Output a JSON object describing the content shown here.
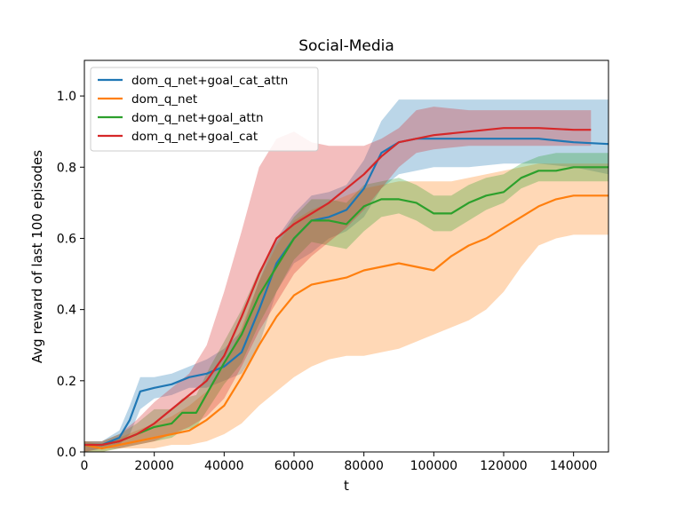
{
  "chart_data": {
    "type": "line",
    "title": "Social-Media",
    "xlabel": "t",
    "ylabel": "Avg reward of last 100 episodes",
    "xlim": [
      0,
      150000
    ],
    "ylim": [
      0,
      1.1
    ],
    "xticks": [
      0,
      20000,
      40000,
      60000,
      80000,
      100000,
      120000,
      140000
    ],
    "yticks": [
      0.0,
      0.2,
      0.4,
      0.6,
      0.8,
      1.0
    ],
    "xtick_labels": [
      "0",
      "20000",
      "40000",
      "60000",
      "80000",
      "100000",
      "120000",
      "140000"
    ],
    "ytick_labels": [
      "0.0",
      "0.2",
      "0.4",
      "0.6",
      "0.8",
      "1.0"
    ],
    "legend_position": "top-left",
    "series": [
      {
        "name": "dom_q_net+goal_cat_attn",
        "color": "#1f77b4",
        "x": [
          0,
          5000,
          10000,
          13000,
          16000,
          20000,
          25000,
          30000,
          35000,
          40000,
          45000,
          50000,
          55000,
          60000,
          65000,
          70000,
          75000,
          80000,
          85000,
          90000,
          95000,
          100000,
          110000,
          120000,
          130000,
          140000,
          150000
        ],
        "mean": [
          0.02,
          0.02,
          0.04,
          0.09,
          0.17,
          0.18,
          0.19,
          0.21,
          0.22,
          0.24,
          0.28,
          0.4,
          0.53,
          0.6,
          0.65,
          0.66,
          0.68,
          0.74,
          0.84,
          0.87,
          0.88,
          0.88,
          0.88,
          0.88,
          0.88,
          0.87,
          0.865
        ],
        "lower": [
          0.0,
          0.01,
          0.02,
          0.05,
          0.12,
          0.15,
          0.16,
          0.18,
          0.18,
          0.2,
          0.22,
          0.3,
          0.45,
          0.53,
          0.56,
          0.6,
          0.62,
          0.66,
          0.74,
          0.78,
          0.79,
          0.8,
          0.8,
          0.81,
          0.81,
          0.8,
          0.78
        ],
        "upper": [
          0.03,
          0.03,
          0.06,
          0.13,
          0.21,
          0.21,
          0.22,
          0.24,
          0.26,
          0.29,
          0.34,
          0.48,
          0.6,
          0.67,
          0.72,
          0.73,
          0.75,
          0.82,
          0.93,
          0.99,
          0.99,
          0.99,
          0.99,
          0.99,
          0.99,
          0.99,
          0.99
        ]
      },
      {
        "name": "dom_q_net",
        "color": "#ff7f0e",
        "x": [
          0,
          5000,
          10000,
          15000,
          20000,
          25000,
          30000,
          35000,
          40000,
          45000,
          50000,
          55000,
          60000,
          65000,
          70000,
          75000,
          80000,
          85000,
          90000,
          95000,
          100000,
          105000,
          110000,
          115000,
          120000,
          125000,
          130000,
          135000,
          140000,
          145000,
          150000
        ],
        "mean": [
          0.02,
          0.01,
          0.02,
          0.03,
          0.04,
          0.05,
          0.06,
          0.09,
          0.13,
          0.21,
          0.3,
          0.38,
          0.44,
          0.47,
          0.48,
          0.49,
          0.51,
          0.52,
          0.53,
          0.52,
          0.51,
          0.55,
          0.58,
          0.6,
          0.63,
          0.66,
          0.69,
          0.71,
          0.72,
          0.72,
          0.72
        ],
        "lower": [
          0.0,
          0.0,
          0.01,
          0.01,
          0.01,
          0.02,
          0.02,
          0.03,
          0.05,
          0.08,
          0.13,
          0.17,
          0.21,
          0.24,
          0.26,
          0.27,
          0.27,
          0.28,
          0.29,
          0.31,
          0.33,
          0.35,
          0.37,
          0.4,
          0.45,
          0.52,
          0.58,
          0.6,
          0.61,
          0.61,
          0.61
        ],
        "upper": [
          0.03,
          0.02,
          0.04,
          0.06,
          0.08,
          0.1,
          0.13,
          0.17,
          0.24,
          0.35,
          0.48,
          0.58,
          0.65,
          0.68,
          0.7,
          0.72,
          0.74,
          0.75,
          0.76,
          0.76,
          0.76,
          0.76,
          0.77,
          0.78,
          0.79,
          0.8,
          0.81,
          0.81,
          0.81,
          0.81,
          0.81
        ]
      },
      {
        "name": "dom_q_net+goal_attn",
        "color": "#2ca02c",
        "x": [
          0,
          5000,
          10000,
          15000,
          20000,
          25000,
          28000,
          32000,
          36000,
          40000,
          45000,
          50000,
          55000,
          60000,
          65000,
          70000,
          75000,
          80000,
          85000,
          90000,
          95000,
          100000,
          105000,
          110000,
          115000,
          120000,
          125000,
          130000,
          135000,
          140000,
          145000,
          150000
        ],
        "mean": [
          0.02,
          0.02,
          0.03,
          0.05,
          0.07,
          0.08,
          0.11,
          0.11,
          0.18,
          0.25,
          0.33,
          0.44,
          0.52,
          0.6,
          0.65,
          0.65,
          0.64,
          0.69,
          0.71,
          0.71,
          0.7,
          0.67,
          0.67,
          0.7,
          0.72,
          0.73,
          0.77,
          0.79,
          0.79,
          0.8,
          0.8,
          0.8
        ],
        "lower": [
          0.0,
          0.0,
          0.01,
          0.02,
          0.03,
          0.04,
          0.06,
          0.07,
          0.13,
          0.19,
          0.25,
          0.36,
          0.45,
          0.54,
          0.59,
          0.58,
          0.57,
          0.62,
          0.66,
          0.67,
          0.65,
          0.62,
          0.62,
          0.65,
          0.68,
          0.7,
          0.74,
          0.76,
          0.76,
          0.76,
          0.76,
          0.76
        ],
        "upper": [
          0.03,
          0.03,
          0.05,
          0.08,
          0.12,
          0.12,
          0.15,
          0.16,
          0.24,
          0.31,
          0.4,
          0.51,
          0.59,
          0.66,
          0.71,
          0.71,
          0.7,
          0.75,
          0.76,
          0.77,
          0.75,
          0.72,
          0.72,
          0.75,
          0.77,
          0.78,
          0.81,
          0.83,
          0.84,
          0.84,
          0.84,
          0.84
        ]
      },
      {
        "name": "dom_q_net+goal_cat",
        "color": "#d62728",
        "x": [
          0,
          5000,
          10000,
          15000,
          20000,
          25000,
          30000,
          35000,
          40000,
          45000,
          50000,
          55000,
          60000,
          65000,
          70000,
          75000,
          80000,
          85000,
          90000,
          95000,
          100000,
          110000,
          120000,
          130000,
          140000,
          145000
        ],
        "mean": [
          0.02,
          0.02,
          0.03,
          0.05,
          0.08,
          0.12,
          0.16,
          0.2,
          0.27,
          0.38,
          0.5,
          0.6,
          0.64,
          0.67,
          0.7,
          0.74,
          0.78,
          0.83,
          0.87,
          0.88,
          0.89,
          0.9,
          0.91,
          0.91,
          0.905,
          0.905
        ],
        "lower": [
          0.0,
          0.01,
          0.01,
          0.02,
          0.03,
          0.05,
          0.07,
          0.1,
          0.15,
          0.24,
          0.34,
          0.42,
          0.5,
          0.55,
          0.59,
          0.63,
          0.68,
          0.74,
          0.8,
          0.84,
          0.85,
          0.86,
          0.86,
          0.86,
          0.86,
          0.86
        ],
        "upper": [
          0.03,
          0.03,
          0.05,
          0.09,
          0.14,
          0.18,
          0.22,
          0.3,
          0.45,
          0.62,
          0.8,
          0.88,
          0.9,
          0.87,
          0.86,
          0.86,
          0.86,
          0.88,
          0.91,
          0.96,
          0.97,
          0.96,
          0.96,
          0.96,
          0.96,
          0.96
        ]
      }
    ]
  }
}
